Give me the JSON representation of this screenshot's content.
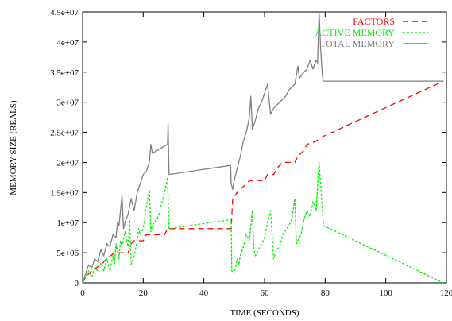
{
  "chart_data": {
    "type": "line",
    "xlabel": "TIME (SECONDS)",
    "ylabel": "MEMORY SIZE (REALS)",
    "xlim": [
      0,
      120
    ],
    "ylim": [
      0,
      45000000
    ],
    "x_ticks": [
      "0",
      "20",
      "40",
      "60",
      "80",
      "100",
      "120"
    ],
    "y_ticks": [
      "0",
      "5e+06",
      "1e+07",
      "1.5e+07",
      "2e+07",
      "2.5e+07",
      "3e+07",
      "3.5e+07",
      "4e+07",
      "4.5e+07"
    ],
    "grid": false,
    "legend_position": "top-right",
    "series": [
      {
        "name": "FACTORS",
        "color": "#ff0000",
        "dash": "dashed",
        "points": [
          [
            0,
            0
          ],
          [
            1,
            1000000
          ],
          [
            3,
            2000000
          ],
          [
            6,
            3000000
          ],
          [
            8,
            4000000
          ],
          [
            10,
            4800000
          ],
          [
            12,
            5000000
          ],
          [
            15,
            5000000
          ],
          [
            16,
            6500000
          ],
          [
            17,
            7000000
          ],
          [
            20,
            7000000
          ],
          [
            21,
            8000000
          ],
          [
            27,
            8000000
          ],
          [
            28,
            9000000
          ],
          [
            49,
            9000000
          ],
          [
            49.5,
            14000000
          ],
          [
            51,
            15000000
          ],
          [
            53,
            16000000
          ],
          [
            55,
            17000000
          ],
          [
            60,
            17000000
          ],
          [
            61,
            18000000
          ],
          [
            63,
            18000000
          ],
          [
            64,
            19000000
          ],
          [
            66,
            20000000
          ],
          [
            70,
            20000000
          ],
          [
            71,
            21000000
          ],
          [
            73,
            22000000
          ],
          [
            74,
            23000000
          ],
          [
            77,
            23500000
          ],
          [
            78,
            24000000
          ],
          [
            119,
            33500000
          ]
        ]
      },
      {
        "name": "ACTIVE MEMORY",
        "color": "#00ee00",
        "dash": "dotted",
        "points": [
          [
            0,
            0
          ],
          [
            1,
            1000000
          ],
          [
            2,
            2000000
          ],
          [
            3,
            1000000
          ],
          [
            4,
            2500000
          ],
          [
            5,
            2000000
          ],
          [
            6,
            3200000
          ],
          [
            7,
            2000000
          ],
          [
            8,
            4000000
          ],
          [
            9,
            2000000
          ],
          [
            10,
            4500000
          ],
          [
            10.5,
            3000000
          ],
          [
            11,
            6500000
          ],
          [
            12,
            4000000
          ],
          [
            12.5,
            7000000
          ],
          [
            13,
            6000000
          ],
          [
            14,
            8500000
          ],
          [
            15,
            6000000
          ],
          [
            15.5,
            10500000
          ],
          [
            16,
            3000000
          ],
          [
            17,
            4500000
          ],
          [
            18,
            7000000
          ],
          [
            18.5,
            9000000
          ],
          [
            19,
            8000000
          ],
          [
            20,
            9000000
          ],
          [
            21,
            12500000
          ],
          [
            22,
            15500000
          ],
          [
            22.5,
            8500000
          ],
          [
            23,
            9500000
          ],
          [
            25,
            11000000
          ],
          [
            26,
            13000000
          ],
          [
            27,
            15000000
          ],
          [
            28,
            17500000
          ],
          [
            28.5,
            9000000
          ],
          [
            49,
            10500000
          ],
          [
            49.2,
            2000000
          ],
          [
            50,
            1500000
          ],
          [
            51,
            4000000
          ],
          [
            51.5,
            3000000
          ],
          [
            52,
            4500000
          ],
          [
            53,
            6000000
          ],
          [
            54,
            8000000
          ],
          [
            55,
            7000000
          ],
          [
            56,
            12000000
          ],
          [
            56.5,
            5500000
          ],
          [
            57,
            4500000
          ],
          [
            58,
            5500000
          ],
          [
            60,
            7500000
          ],
          [
            61,
            10000000
          ],
          [
            62,
            12000000
          ],
          [
            63,
            4000000
          ],
          [
            64,
            5500000
          ],
          [
            65,
            6000000
          ],
          [
            66,
            8000000
          ],
          [
            68,
            9500000
          ],
          [
            69,
            10500000
          ],
          [
            70,
            14000000
          ],
          [
            70.5,
            6500000
          ],
          [
            71,
            7000000
          ],
          [
            72,
            8000000
          ],
          [
            73,
            10500000
          ],
          [
            74,
            12000000
          ],
          [
            75,
            11000000
          ],
          [
            76,
            13500000
          ],
          [
            77,
            12000000
          ],
          [
            78,
            20000000
          ],
          [
            78.5,
            16500000
          ],
          [
            79,
            12500000
          ],
          [
            79.5,
            9500000
          ],
          [
            119,
            0
          ]
        ]
      },
      {
        "name": "TOTAL MEMORY",
        "color": "#808080",
        "dash": "solid",
        "points": [
          [
            0,
            0
          ],
          [
            1,
            1500000
          ],
          [
            2,
            3000000
          ],
          [
            3,
            2500000
          ],
          [
            4,
            4000000
          ],
          [
            5,
            3500000
          ],
          [
            6,
            5500000
          ],
          [
            7,
            4500000
          ],
          [
            8,
            6500000
          ],
          [
            9,
            6000000
          ],
          [
            10,
            8000000
          ],
          [
            11,
            7500000
          ],
          [
            11.5,
            10000000
          ],
          [
            12,
            9500000
          ],
          [
            13,
            14500000
          ],
          [
            13.5,
            9000000
          ],
          [
            14,
            10000000
          ],
          [
            15,
            11500000
          ],
          [
            16,
            14000000
          ],
          [
            17,
            12000000
          ],
          [
            18,
            15000000
          ],
          [
            19,
            16500000
          ],
          [
            20,
            18000000
          ],
          [
            21,
            18500000
          ],
          [
            22,
            20000000
          ],
          [
            22.5,
            23000000
          ],
          [
            23,
            21500000
          ],
          [
            28,
            23000000
          ],
          [
            28.2,
            26500000
          ],
          [
            28.5,
            18000000
          ],
          [
            48.8,
            19500000
          ],
          [
            49,
            16500000
          ],
          [
            49.5,
            15500000
          ],
          [
            50,
            17000000
          ],
          [
            51,
            19000000
          ],
          [
            52,
            21000000
          ],
          [
            53,
            23500000
          ],
          [
            54,
            25000000
          ],
          [
            55,
            27500000
          ],
          [
            55.5,
            31000000
          ],
          [
            56,
            25500000
          ],
          [
            57,
            27000000
          ],
          [
            58,
            29000000
          ],
          [
            59,
            30000000
          ],
          [
            60,
            31500000
          ],
          [
            61,
            33000000
          ],
          [
            62,
            28000000
          ],
          [
            63,
            29000000
          ],
          [
            65,
            30000000
          ],
          [
            67,
            31000000
          ],
          [
            68,
            32000000
          ],
          [
            70,
            33000000
          ],
          [
            71,
            36000000
          ],
          [
            71.5,
            34000000
          ],
          [
            73,
            35000000
          ],
          [
            74,
            35500000
          ],
          [
            75,
            37000000
          ],
          [
            76,
            35500000
          ],
          [
            77,
            37000000
          ],
          [
            77.5,
            36500000
          ],
          [
            78,
            45000000
          ],
          [
            78.5,
            39000000
          ],
          [
            79,
            35000000
          ],
          [
            79.3,
            33500000
          ],
          [
            119,
            33500000
          ]
        ]
      }
    ]
  }
}
